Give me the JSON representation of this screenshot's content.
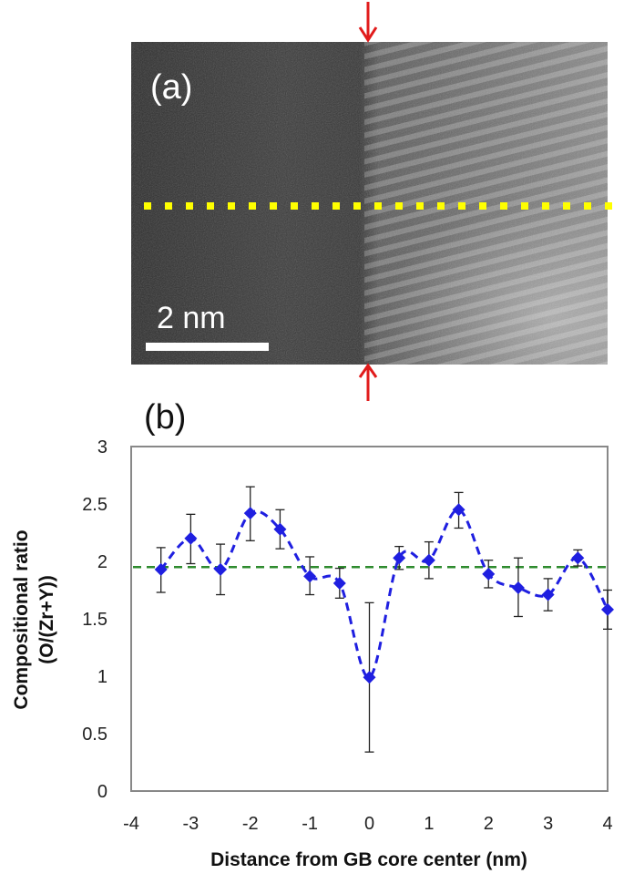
{
  "panel_a": {
    "label": "(a)",
    "scale_bar_label": "2 nm",
    "colors": {
      "boundary_arrows": "#e11b1b",
      "profile_line": "#ffff00",
      "scale_bar": "#ffffff"
    }
  },
  "panel_b": {
    "label": "(b)"
  },
  "chart_data": {
    "type": "scatter",
    "title": "",
    "xlabel": "Distance from GB core center (nm)",
    "ylabel_line1": "Compositional ratio",
    "ylabel_line2": "(O/(Zr+Y))",
    "xlim": [
      -4,
      4
    ],
    "ylim": [
      0,
      3
    ],
    "x_ticks": [
      -4,
      -3,
      -2,
      -1,
      0,
      1,
      2,
      3,
      4
    ],
    "y_ticks": [
      0,
      0.5,
      1,
      1.5,
      2,
      2.5,
      3
    ],
    "grid": false,
    "reference_line": {
      "y": 1.95,
      "color": "#2e8b2e",
      "style": "dashed"
    },
    "series": [
      {
        "marker": "diamond",
        "line": "dashed-smooth",
        "color": "#1f1fe0",
        "x": [
          -3.5,
          -3.0,
          -2.5,
          -2.0,
          -1.5,
          -1.0,
          -0.5,
          0.0,
          0.5,
          1.0,
          1.5,
          2.0,
          2.5,
          3.0,
          3.5,
          4.0
        ],
        "y": [
          1.93,
          2.2,
          1.93,
          2.42,
          2.28,
          1.87,
          1.81,
          0.99,
          2.03,
          2.01,
          2.45,
          1.89,
          1.77,
          1.71,
          2.03,
          1.58
        ],
        "err_low": [
          1.73,
          1.98,
          1.71,
          2.18,
          2.11,
          1.71,
          1.68,
          0.34,
          1.93,
          1.85,
          2.29,
          1.77,
          1.52,
          1.57,
          1.96,
          1.41
        ],
        "err_high": [
          2.12,
          2.41,
          2.15,
          2.65,
          2.45,
          2.04,
          1.94,
          1.64,
          2.13,
          2.17,
          2.6,
          2.01,
          2.03,
          1.85,
          2.1,
          1.75
        ]
      }
    ]
  }
}
